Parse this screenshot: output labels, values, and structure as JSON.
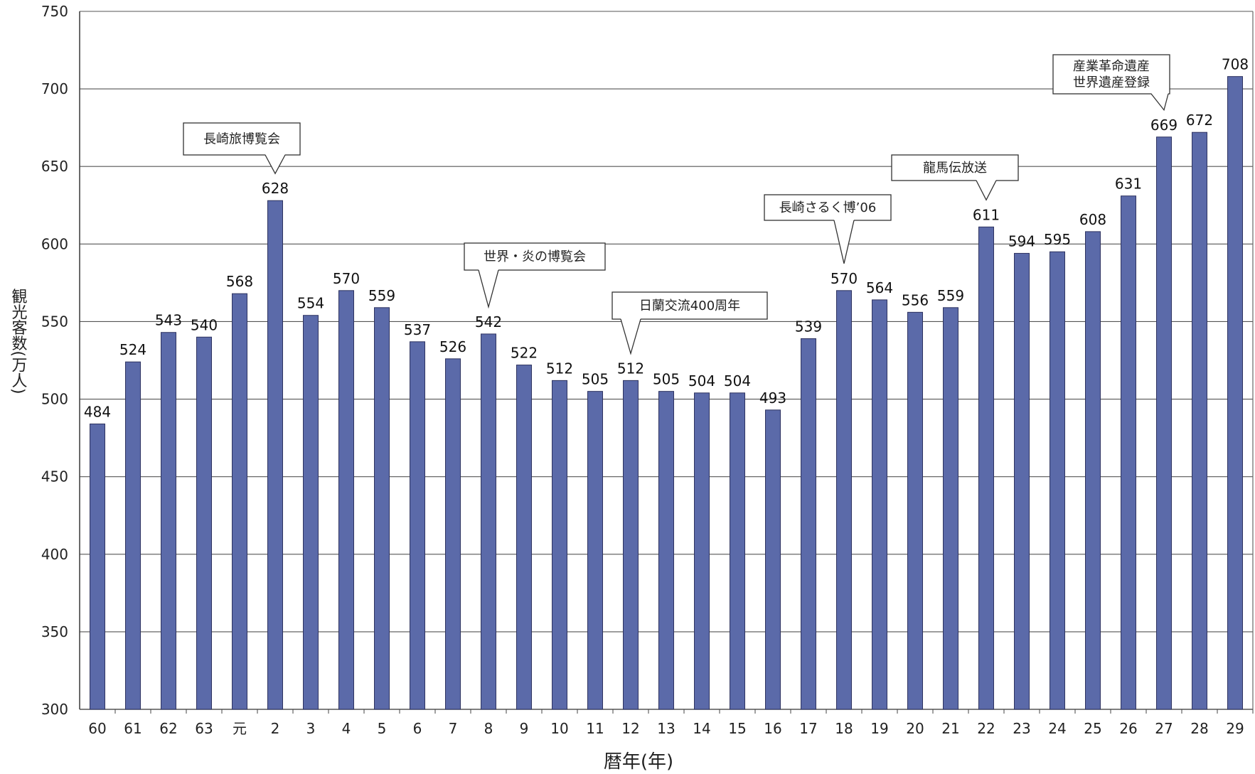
{
  "chart_data": {
    "type": "bar",
    "xlabel": "暦年(年)",
    "ylabel": "観光客数(万人)",
    "ylim": [
      300,
      750
    ],
    "yticks": [
      "300",
      "350",
      "400",
      "450",
      "500",
      "550",
      "600",
      "650",
      "700",
      "750"
    ],
    "grid": true,
    "bar_color": "#5b6aa9",
    "categories": [
      "60",
      "61",
      "62",
      "63",
      "元",
      "2",
      "3",
      "4",
      "5",
      "6",
      "7",
      "8",
      "9",
      "10",
      "11",
      "12",
      "13",
      "14",
      "15",
      "16",
      "17",
      "18",
      "19",
      "20",
      "21",
      "22",
      "23",
      "24",
      "25",
      "26",
      "27",
      "28",
      "29"
    ],
    "values": [
      484,
      524,
      543,
      540,
      568,
      628,
      554,
      570,
      559,
      537,
      526,
      542,
      522,
      512,
      505,
      512,
      505,
      504,
      504,
      493,
      539,
      570,
      564,
      556,
      559,
      611,
      594,
      595,
      608,
      631,
      669,
      672,
      708
    ],
    "annotations": [
      {
        "text": "長崎旅博覧会",
        "target": "2"
      },
      {
        "text": "世界・炎の博覧会",
        "target": "8"
      },
      {
        "text": "日蘭交流400周年",
        "target": "12"
      },
      {
        "text": "長崎さるく博’06",
        "target": "18"
      },
      {
        "text": "龍馬伝放送",
        "target": "22"
      },
      {
        "text": "産業革命遺産 世界遺産登録",
        "target": "27"
      }
    ]
  }
}
